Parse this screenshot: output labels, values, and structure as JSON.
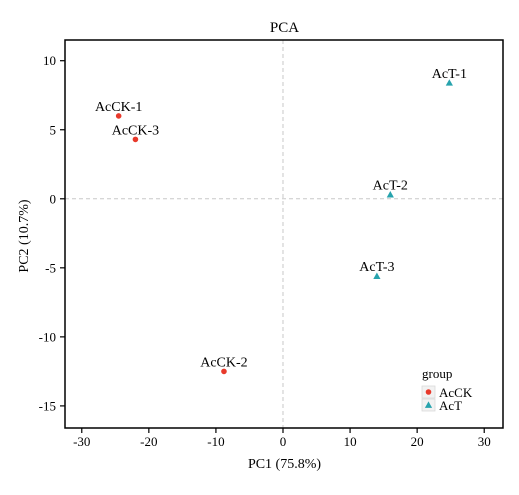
{
  "chart_data": {
    "type": "scatter",
    "title": "PCA",
    "xlabel": "PC1 (75.8%)",
    "ylabel": "PC2 (10.7%)",
    "xlim": [
      -32.5,
      32.8
    ],
    "ylim": [
      -16.6,
      11.5
    ],
    "xticks": [
      -30,
      -20,
      -10,
      0,
      10,
      20,
      30
    ],
    "yticks": [
      10,
      5,
      0,
      -5,
      -10,
      -15
    ],
    "grid": false,
    "reference_lines": {
      "x": 0,
      "y": 0,
      "style": "dashed"
    },
    "legend": {
      "title": "group",
      "position": "bottom-right"
    },
    "series": [
      {
        "name": "AcCK",
        "color": "#e8392b",
        "marker": "circle",
        "points": [
          {
            "label": "AcCK-1",
            "x": -24.5,
            "y": 6.0
          },
          {
            "label": "AcCK-3",
            "x": -22.0,
            "y": 4.3
          },
          {
            "label": "AcCK-2",
            "x": -8.8,
            "y": -12.5
          }
        ]
      },
      {
        "name": "AcT",
        "color": "#27a3ad",
        "marker": "triangle",
        "points": [
          {
            "label": "AcT-1",
            "x": 24.8,
            "y": 8.4
          },
          {
            "label": "AcT-2",
            "x": 16.0,
            "y": 0.3
          },
          {
            "label": "AcT-3",
            "x": 14.0,
            "y": -5.6
          }
        ]
      }
    ]
  }
}
